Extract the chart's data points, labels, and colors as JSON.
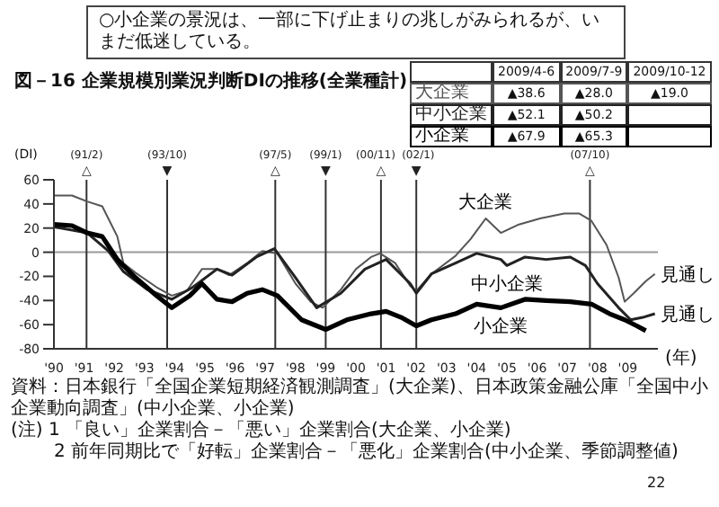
{
  "chart_data": {
    "type": "line",
    "title": "○小企業の景況は、一部に下げ止まりの兆しがみられるが、いまだ低迷している。",
    "subtitle": "図－16 企業規模別業況判断DIの推移(全業種計)",
    "ylabel": "(DI)",
    "xlabel": "(年)",
    "xlim": [
      1990,
      2010
    ],
    "xticks": [
      {
        "value": 1990,
        "label": "'90"
      },
      {
        "value": 1991,
        "label": "'91"
      },
      {
        "value": 1992,
        "label": "'92"
      },
      {
        "value": 1993,
        "label": "'93"
      },
      {
        "value": 1994,
        "label": "'94"
      },
      {
        "value": 1995,
        "label": "'95"
      },
      {
        "value": 1996,
        "label": "'96"
      },
      {
        "value": 1997,
        "label": "'97"
      },
      {
        "value": 1998,
        "label": "'98"
      },
      {
        "value": 1999,
        "label": "'99"
      },
      {
        "value": 2000,
        "label": "'00"
      },
      {
        "value": 2001,
        "label": "'01"
      },
      {
        "value": 2002,
        "label": "'02"
      },
      {
        "value": 2003,
        "label": "'03"
      },
      {
        "value": 2004,
        "label": "'04"
      },
      {
        "value": 2005,
        "label": "'05"
      },
      {
        "value": 2006,
        "label": "'06"
      },
      {
        "value": 2007,
        "label": "'07"
      },
      {
        "value": 2008,
        "label": "'08"
      },
      {
        "value": 2009,
        "label": "'09"
      }
    ],
    "legend": "top right",
    "ylim": [
      -80,
      60
    ],
    "yticks": [
      -80,
      -60,
      -40,
      -20,
      0,
      20,
      40,
      60
    ],
    "series": [
      {
        "name": "大企業",
        "color": "#555555",
        "x": [
          1990.0,
          1990.6,
          1991.1,
          1991.6,
          1992.1,
          1992.3,
          1992.7,
          1993.4,
          1993.9,
          1994.4,
          1994.9,
          1995.4,
          1995.8,
          1996.4,
          1996.9,
          1997.4,
          1998.0,
          1998.5,
          1998.9,
          1999.5,
          2000.0,
          2000.5,
          2000.8,
          2001.3,
          2001.8,
          2002.0,
          2002.5,
          2003.3,
          2003.8,
          2004.3,
          2004.8,
          2005.4,
          2006.1,
          2006.9,
          2007.4,
          2007.8,
          2008.3,
          2008.7,
          2008.9,
          2009.2,
          2009.6,
          2009.9
        ],
        "values": [
          47,
          47,
          42,
          38,
          13,
          -9,
          -17,
          -29,
          -36,
          -32,
          -14,
          -14,
          -19,
          -9,
          1,
          -1,
          -26,
          -41,
          -46,
          -31,
          -14,
          -4,
          -1,
          -9,
          -28,
          -32,
          -18,
          -3,
          11,
          28,
          16,
          23,
          28,
          32,
          32,
          26,
          6,
          -21,
          -41,
          -34,
          -24,
          -18
        ]
      },
      {
        "name": "中小企業",
        "color": "#222222",
        "x": [
          1990.0,
          1991.1,
          1991.8,
          1992.3,
          1993.1,
          1993.9,
          1994.6,
          1995.4,
          1995.9,
          1996.7,
          1997.3,
          1998.0,
          1998.7,
          1999.5,
          2000.3,
          2001.0,
          2001.8,
          2002.0,
          2002.5,
          2003.3,
          2004.0,
          2004.8,
          2005.0,
          2005.6,
          2006.3,
          2007.1,
          2007.6,
          2008.0,
          2008.7,
          2009.1,
          2009.5,
          2009.9
        ],
        "values": [
          21,
          16,
          1,
          -16,
          -31,
          -39,
          -29,
          -14,
          -19,
          -4,
          3,
          -21,
          -46,
          -34,
          -14,
          -6,
          -26,
          -34,
          -18,
          -9,
          -1,
          -6,
          -11,
          -4,
          -6,
          -4,
          -11,
          -26,
          -46,
          -56,
          -54,
          -51
        ]
      },
      {
        "name": "小企業",
        "color": "#000000",
        "x": [
          1990.0,
          1990.6,
          1991.1,
          1991.6,
          1992.1,
          1992.7,
          1993.4,
          1993.9,
          1994.5,
          1994.9,
          1995.4,
          1995.9,
          1996.4,
          1996.9,
          1997.4,
          1998.2,
          1999.0,
          1999.7,
          2000.5,
          2001.0,
          2001.5,
          2002.0,
          2002.5,
          2003.3,
          2004.0,
          2004.8,
          2005.6,
          2006.3,
          2007.1,
          2007.8,
          2008.4,
          2008.9,
          2009.3,
          2009.6
        ],
        "values": [
          23,
          22,
          16,
          13,
          -6,
          -21,
          -36,
          -46,
          -36,
          -26,
          -39,
          -41,
          -34,
          -31,
          -36,
          -56,
          -64,
          -56,
          -51,
          -49,
          -54,
          -61,
          -56,
          -51,
          -43,
          -46,
          -39,
          -40,
          -41,
          -43,
          -51,
          -56,
          -61,
          -65
        ]
      }
    ],
    "ref_lines": [
      {
        "axis": "y",
        "value": 0,
        "color": "#999999"
      },
      {
        "axis": "x",
        "value": 1991.08,
        "label": "(91/2)△",
        "color": "#333333"
      },
      {
        "axis": "x",
        "value": 1993.75,
        "label": "(93/10)▼",
        "color": "#333333"
      },
      {
        "axis": "x",
        "value": 1997.33,
        "label": "(97/5)△",
        "color": "#333333"
      },
      {
        "axis": "x",
        "value": 1999.0,
        "label": "(99/1)▼",
        "color": "#333333"
      },
      {
        "axis": "x",
        "value": 2000.83,
        "label": "(00/11)△",
        "color": "#333333"
      },
      {
        "axis": "x",
        "value": 2002.0,
        "label": "(02/1)▼",
        "color": "#333333"
      },
      {
        "axis": "x",
        "value": 2007.75,
        "label": "(07/10)△",
        "color": "#333333"
      }
    ],
    "annotations": [
      {
        "text": "見通し",
        "x": 2009.9,
        "y": -18
      },
      {
        "text": "見通し",
        "x": 2009.9,
        "y": -51
      },
      "2009/4-6",
      "2009/7-9",
      "2009/10-12",
      "▲38.6",
      "▲28.0",
      "▲19.0",
      "▲52.1",
      "▲50.2",
      "▲67.9",
      "▲65.3",
      "資料：日本銀行「全国企業短期経済観測調査」(大企業)、日本政策金融公庫「全国中小企業動向調査」(中小企業、小企業)",
      "(注) 1 「良い」企業割合－「悪い」企業割合(大企業、小企業)",
      "2 前年同期比で「好転」企業割合－「悪化」企業割合(中小企業、季節調整値)",
      "22"
    ]
  }
}
